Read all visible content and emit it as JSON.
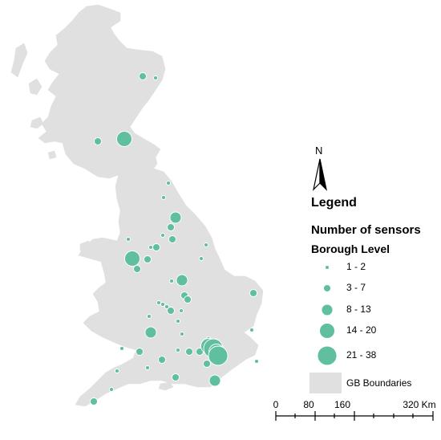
{
  "legend": {
    "title": "Legend",
    "subtitle": "Number of sensors",
    "level": "Borough Level",
    "classes": [
      {
        "label": "1 - 2",
        "min": 1,
        "max": 2
      },
      {
        "label": "3 - 7",
        "min": 3,
        "max": 7
      },
      {
        "label": "8 - 13",
        "min": 8,
        "max": 13
      },
      {
        "label": "14 - 20",
        "min": 14,
        "max": 20
      },
      {
        "label": "21 - 38",
        "min": 21,
        "max": 38
      }
    ],
    "boundary_label": "GB Boundaries"
  },
  "north_arrow": {
    "label": "N"
  },
  "scale_bar": {
    "ticks": [
      "0",
      "80",
      "160",
      "320 Km"
    ],
    "values_km": [
      0,
      80,
      160,
      320
    ]
  },
  "colors": {
    "sensor": "#5fbf9f",
    "land": "#e0e0e0",
    "outline": "#ffffff"
  }
}
